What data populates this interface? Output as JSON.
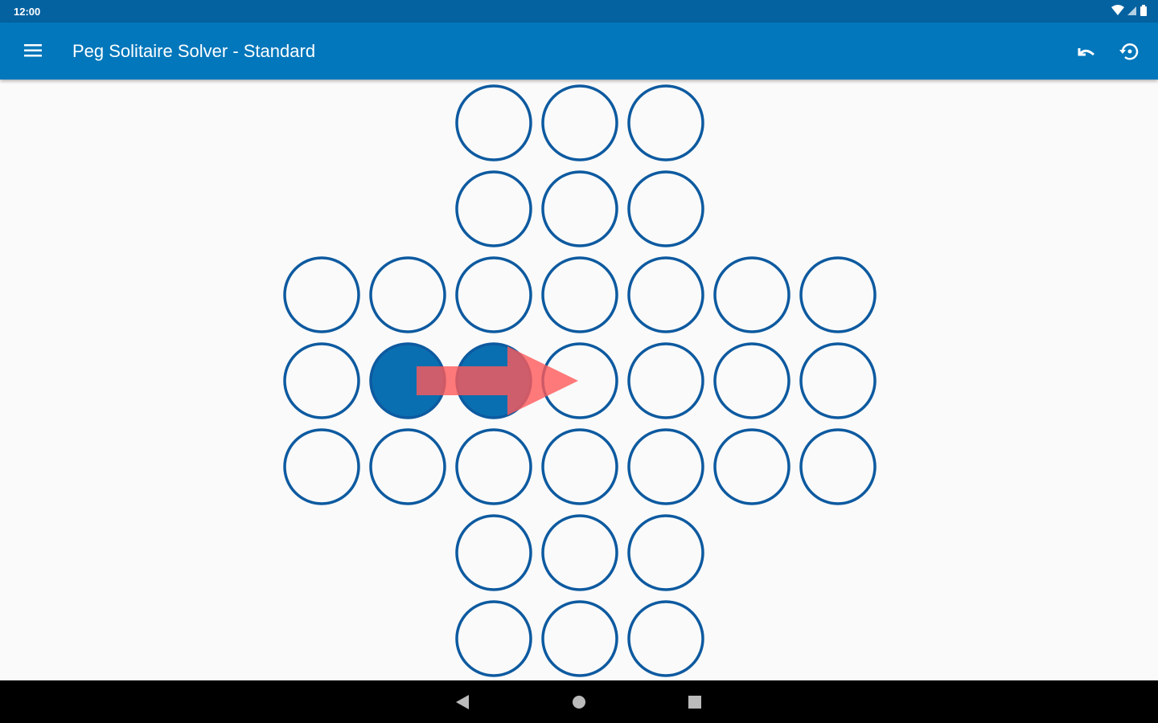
{
  "status_bar": {
    "time": "12:00",
    "icons": [
      "wifi-icon",
      "signal-icon",
      "battery-icon"
    ]
  },
  "app_bar": {
    "title": "Peg Solitaire Solver - Standard",
    "menu_icon": "hamburger-menu-icon",
    "actions": [
      {
        "name": "undo",
        "icon": "undo-icon"
      },
      {
        "name": "reset",
        "icon": "restore-icon"
      }
    ]
  },
  "board": {
    "layout": [
      "  ooo  ",
      "  ooo  ",
      "ooooooo",
      "oPPoooo",
      "ooooooo",
      "  ooo  ",
      "  ooo  "
    ],
    "legend": {
      "o": "empty hole",
      "P": "peg"
    },
    "hint_move": {
      "from": [
        3,
        1
      ],
      "to": [
        3,
        3
      ]
    },
    "colors": {
      "hole_stroke": "#0d5aa0",
      "peg_fill": "#0a6fb0",
      "hint_arrow": "#ff5a5a"
    }
  },
  "nav_bar": {
    "buttons": [
      "back-icon",
      "home-icon",
      "recents-icon"
    ]
  }
}
